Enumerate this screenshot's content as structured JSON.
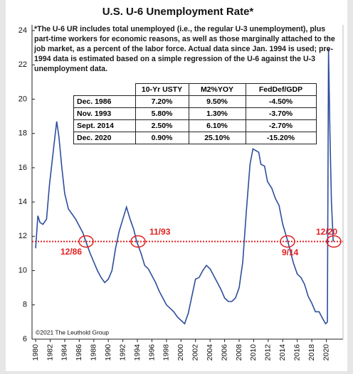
{
  "chart_data": {
    "type": "line",
    "title": "U.S. U-6 Unemployment Rate*",
    "note": "*The U-6 UR includes total unemployed (i.e., the regular U-3 unemployment), plus part-time workers for economic reasons, as well as those marginally attached to the job market, as a percent of the labor force. Actual data since Jan. 1994 is used; pre-1994 data is estimated based on a simple regression of the U-6 against the U-3 unemployment data.",
    "source": "©2021 The Leuthold Group",
    "table": {
      "columns": [
        "10-Yr USTY",
        "M2%YOY",
        "FedDef/GDP"
      ],
      "rows": [
        [
          "Dec. 1986",
          "7.20%",
          "9.50%",
          "-4.50%"
        ],
        [
          "Nov. 1993",
          "5.80%",
          "1.30%",
          "-3.70%"
        ],
        [
          "Sept. 2014",
          "2.50%",
          "6.10%",
          "-2.70%"
        ],
        [
          "Dec. 2020",
          "0.90%",
          "25.10%",
          "-15.20%"
        ]
      ]
    },
    "annotations": [
      "12/86",
      "11/93",
      "9/14",
      "12/20"
    ],
    "reference_line": {
      "value": 11.7,
      "color": "#e02020"
    },
    "x": [
      1980.0,
      1980.3,
      1980.6,
      1981.0,
      1981.5,
      1981.9,
      1982.3,
      1982.7,
      1982.9,
      1983.2,
      1983.6,
      1984.0,
      1984.5,
      1985.0,
      1985.5,
      1986.0,
      1986.5,
      1986.9,
      1987.5,
      1988.0,
      1988.5,
      1989.0,
      1989.5,
      1990.0,
      1990.5,
      1991.0,
      1991.5,
      1992.0,
      1992.5,
      1993.0,
      1993.5,
      1993.9,
      1994.5,
      1995.0,
      1995.5,
      1996.0,
      1996.5,
      1997.0,
      1997.5,
      1998.0,
      1998.5,
      1999.0,
      1999.5,
      2000.0,
      2000.5,
      2001.0,
      2001.5,
      2002.0,
      2002.5,
      2003.0,
      2003.5,
      2004.0,
      2004.5,
      2005.0,
      2005.5,
      2006.0,
      2006.5,
      2007.0,
      2007.5,
      2008.0,
      2008.5,
      2009.0,
      2009.5,
      2009.9,
      2010.3,
      2010.7,
      2011.0,
      2011.5,
      2011.9,
      2012.5,
      2013.0,
      2013.5,
      2014.0,
      2014.7,
      2015.0,
      2015.5,
      2016.0,
      2016.5,
      2017.0,
      2017.5,
      2018.0,
      2018.5,
      2019.0,
      2019.5,
      2019.9,
      2020.15,
      2020.3,
      2020.5,
      2020.7,
      2020.95
    ],
    "series": [
      {
        "name": "U-6",
        "color": "#2e4d9c",
        "values": [
          11.3,
          13.2,
          12.8,
          12.7,
          13.0,
          15.0,
          16.5,
          18.0,
          18.7,
          17.8,
          16.0,
          14.5,
          13.6,
          13.3,
          13.0,
          12.6,
          12.2,
          11.7,
          11.0,
          10.5,
          10.0,
          9.6,
          9.3,
          9.5,
          10.0,
          11.3,
          12.3,
          13.0,
          13.7,
          13.0,
          12.4,
          11.7,
          11.0,
          10.3,
          10.1,
          9.7,
          9.3,
          8.8,
          8.4,
          8.0,
          7.8,
          7.6,
          7.3,
          7.1,
          6.9,
          7.5,
          8.5,
          9.5,
          9.6,
          10.0,
          10.3,
          10.1,
          9.7,
          9.3,
          8.9,
          8.4,
          8.2,
          8.2,
          8.4,
          9.0,
          10.5,
          13.5,
          16.2,
          17.1,
          17.0,
          16.9,
          16.2,
          16.1,
          15.2,
          14.8,
          14.2,
          13.8,
          12.7,
          11.7,
          11.2,
          10.4,
          9.8,
          9.6,
          9.2,
          8.5,
          8.1,
          7.6,
          7.6,
          7.2,
          6.9,
          7.0,
          22.9,
          18.0,
          14.0,
          11.7
        ]
      }
    ],
    "xlim": [
      1979.5,
      2022.3
    ],
    "xticks": [
      1980,
      1982,
      1984,
      1986,
      1988,
      1990,
      1992,
      1994,
      1996,
      1998,
      2000,
      2002,
      2004,
      2006,
      2008,
      2010,
      2012,
      2014,
      2016,
      2018,
      2020
    ],
    "ylim": [
      6,
      24
    ],
    "yticks": [
      6,
      8,
      10,
      12,
      14,
      16,
      18,
      20,
      22,
      24
    ]
  }
}
